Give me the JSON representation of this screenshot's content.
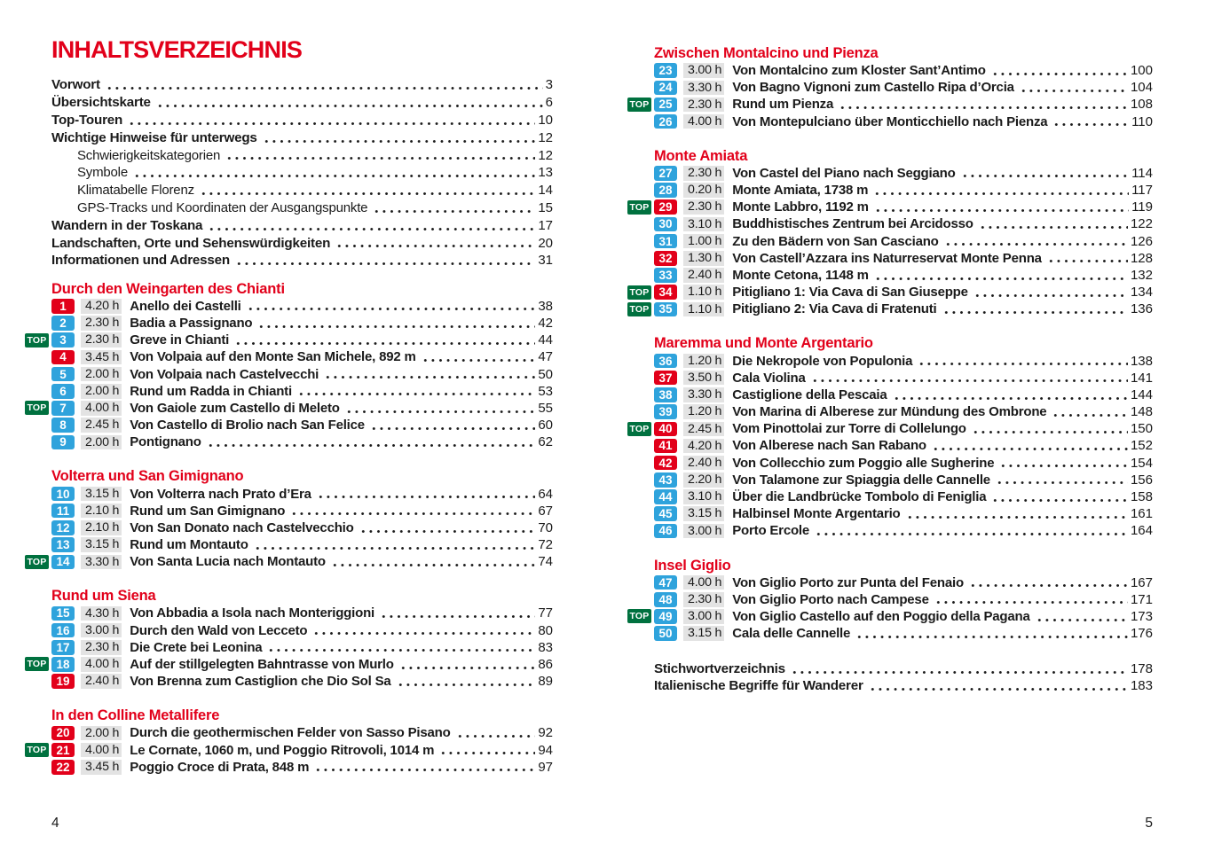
{
  "document": {
    "title": "INHALTSVERZEICHNIS",
    "folio_left": "4",
    "folio_right": "5"
  },
  "labels": {
    "top_badge": "TOP"
  },
  "colors": {
    "accent_red": "#e2001a",
    "badge_blue": "#2fa3dc",
    "top_green": "#00713f",
    "time_bg": "#e3e3e3",
    "text": "#1a1a1a"
  },
  "front_matter": [
    {
      "label": "Vorwort",
      "page": "3",
      "style": "main"
    },
    {
      "label": "Übersichtskarte",
      "page": "6",
      "style": "main"
    },
    {
      "label": "Top-Touren",
      "page": "10",
      "style": "main"
    },
    {
      "label": "Wichtige Hinweise für unterwegs",
      "page": "12",
      "style": "main"
    },
    {
      "label": "Schwierigkeitskategorien",
      "page": "12",
      "style": "sub"
    },
    {
      "label": "Symbole",
      "page": "13",
      "style": "sub"
    },
    {
      "label": "Klimatabelle Florenz",
      "page": "14",
      "style": "sub"
    },
    {
      "label": "GPS-Tracks und Koordinaten der Ausgangspunkte",
      "page": "15",
      "style": "sub"
    },
    {
      "label": "Wandern in der Toskana",
      "page": "17",
      "style": "main"
    },
    {
      "label": "Landschaften, Orte und Sehenswürdigkeiten",
      "page": "20",
      "style": "main"
    },
    {
      "label": "Informationen und Adressen",
      "page": "31",
      "style": "main"
    }
  ],
  "columns": {
    "left_sections": [
      {
        "heading": "Durch den Weingarten des Chianti",
        "tours": [
          {
            "num": "1",
            "color": "red",
            "top": false,
            "time": "4.20 h",
            "title": "Anello dei Castelli",
            "page": "38"
          },
          {
            "num": "2",
            "color": "blue",
            "top": false,
            "time": "2.30 h",
            "title": "Badia a Passignano",
            "page": "42"
          },
          {
            "num": "3",
            "color": "blue",
            "top": true,
            "time": "2.30 h",
            "title": "Greve in Chianti",
            "page": "44"
          },
          {
            "num": "4",
            "color": "red",
            "top": false,
            "time": "3.45 h",
            "title": "Von Volpaia auf den Monte San Michele, 892 m",
            "page": "47"
          },
          {
            "num": "5",
            "color": "blue",
            "top": false,
            "time": "2.00 h",
            "title": "Von Volpaia nach Castelvecchi",
            "page": "50"
          },
          {
            "num": "6",
            "color": "blue",
            "top": false,
            "time": "2.00 h",
            "title": "Rund um Radda in Chianti",
            "page": "53"
          },
          {
            "num": "7",
            "color": "blue",
            "top": true,
            "time": "4.00 h",
            "title": "Von Gaiole zum Castello di Meleto",
            "page": "55"
          },
          {
            "num": "8",
            "color": "blue",
            "top": false,
            "time": "2.45 h",
            "title": "Von Castello di Brolio nach San Felice",
            "page": "60"
          },
          {
            "num": "9",
            "color": "blue",
            "top": false,
            "time": "2.00 h",
            "title": "Pontignano",
            "page": "62"
          }
        ]
      },
      {
        "heading": "Volterra und San Gimignano",
        "tours": [
          {
            "num": "10",
            "color": "blue",
            "top": false,
            "time": "3.15 h",
            "title": "Von Volterra nach Prato d’Era",
            "page": "64"
          },
          {
            "num": "11",
            "color": "blue",
            "top": false,
            "time": "2.10 h",
            "title": "Rund um San Gimignano",
            "page": "67"
          },
          {
            "num": "12",
            "color": "blue",
            "top": false,
            "time": "2.10 h",
            "title": "Von San Donato nach Castelvecchio",
            "page": "70"
          },
          {
            "num": "13",
            "color": "blue",
            "top": false,
            "time": "3.15 h",
            "title": "Rund um Montauto",
            "page": "72"
          },
          {
            "num": "14",
            "color": "blue",
            "top": true,
            "time": "3.30 h",
            "title": "Von Santa Lucia nach Montauto",
            "page": "74"
          }
        ]
      },
      {
        "heading": "Rund um Siena",
        "tours": [
          {
            "num": "15",
            "color": "blue",
            "top": false,
            "time": "4.30 h",
            "title": "Von Abbadia a Isola nach Monteriggioni",
            "page": "77"
          },
          {
            "num": "16",
            "color": "blue",
            "top": false,
            "time": "3.00 h",
            "title": "Durch den Wald von Lecceto",
            "page": "80"
          },
          {
            "num": "17",
            "color": "blue",
            "top": false,
            "time": "2.30 h",
            "title": "Die Crete bei Leonina",
            "page": "83"
          },
          {
            "num": "18",
            "color": "blue",
            "top": true,
            "time": "4.00 h",
            "title": "Auf der stillgelegten Bahntrasse von Murlo",
            "page": "86"
          },
          {
            "num": "19",
            "color": "red",
            "top": false,
            "time": "2.40 h",
            "title": "Von Brenna zum Castiglion che Dio Sol Sa",
            "page": "89"
          }
        ]
      },
      {
        "heading": "In den Colline Metallifere",
        "tours": [
          {
            "num": "20",
            "color": "red",
            "top": false,
            "time": "2.00 h",
            "title": "Durch die geothermischen Felder von Sasso Pisano",
            "page": "92"
          },
          {
            "num": "21",
            "color": "red",
            "top": true,
            "time": "4.00 h",
            "title": "Le Cornate, 1060 m, und Poggio Ritrovoli, 1014 m",
            "page": "94"
          },
          {
            "num": "22",
            "color": "red",
            "top": false,
            "time": "3.45 h",
            "title": "Poggio Croce di Prata, 848 m",
            "page": "97"
          }
        ]
      }
    ],
    "right_sections": [
      {
        "heading": "Zwischen Montalcino und Pienza",
        "tours": [
          {
            "num": "23",
            "color": "blue",
            "top": false,
            "time": "3.00 h",
            "title": "Von Montalcino zum Kloster Sant’Antimo",
            "page": "100"
          },
          {
            "num": "24",
            "color": "blue",
            "top": false,
            "time": "3.30 h",
            "title": "Von Bagno Vignoni zum Castello Ripa d’Orcia",
            "page": "104"
          },
          {
            "num": "25",
            "color": "blue",
            "top": true,
            "time": "2.30 h",
            "title": "Rund um Pienza",
            "page": "108"
          },
          {
            "num": "26",
            "color": "blue",
            "top": false,
            "time": "4.00 h",
            "title": "Von Montepulciano über Monticchiello nach Pienza",
            "page": "110"
          }
        ]
      },
      {
        "heading": "Monte Amiata",
        "tours": [
          {
            "num": "27",
            "color": "blue",
            "top": false,
            "time": "2.30 h",
            "title": "Von Castel del Piano nach Seggiano",
            "page": "114"
          },
          {
            "num": "28",
            "color": "blue",
            "top": false,
            "time": "0.20 h",
            "title": "Monte Amiata, 1738 m",
            "page": "117"
          },
          {
            "num": "29",
            "color": "red",
            "top": true,
            "time": "2.30 h",
            "title": "Monte Labbro, 1192 m",
            "page": "119"
          },
          {
            "num": "30",
            "color": "blue",
            "top": false,
            "time": "3.10 h",
            "title": "Buddhistisches Zentrum bei Arcidosso",
            "page": "122"
          },
          {
            "num": "31",
            "color": "blue",
            "top": false,
            "time": "1.00 h",
            "title": "Zu den Bädern von San Casciano",
            "page": "126"
          },
          {
            "num": "32",
            "color": "red",
            "top": false,
            "time": "1.30 h",
            "title": "Von Castell’Azzara ins Naturreservat Monte Penna",
            "page": "128"
          },
          {
            "num": "33",
            "color": "blue",
            "top": false,
            "time": "2.40 h",
            "title": "Monte Cetona, 1148 m",
            "page": "132"
          },
          {
            "num": "34",
            "color": "red",
            "top": true,
            "time": "1.10 h",
            "title": "Pitigliano 1: Via Cava di San Giuseppe",
            "page": "134"
          },
          {
            "num": "35",
            "color": "blue",
            "top": true,
            "time": "1.10 h",
            "title": "Pitigliano 2: Via Cava di Fratenuti",
            "page": "136"
          }
        ]
      },
      {
        "heading": "Maremma und Monte Argentario",
        "tours": [
          {
            "num": "36",
            "color": "blue",
            "top": false,
            "time": "1.20 h",
            "title": "Die Nekropole von Populonia",
            "page": "138"
          },
          {
            "num": "37",
            "color": "red",
            "top": false,
            "time": "3.50 h",
            "title": "Cala Violina",
            "page": "141"
          },
          {
            "num": "38",
            "color": "blue",
            "top": false,
            "time": "3.30 h",
            "title": "Castiglione della Pescaia",
            "page": "144"
          },
          {
            "num": "39",
            "color": "blue",
            "top": false,
            "time": "1.20 h",
            "title": "Von Marina di Alberese zur Mündung des Ombrone",
            "page": "148"
          },
          {
            "num": "40",
            "color": "red",
            "top": true,
            "time": "2.45 h",
            "title": "Vom Pinottolai zur Torre di Collelungo",
            "page": "150"
          },
          {
            "num": "41",
            "color": "red",
            "top": false,
            "time": "4.20 h",
            "title": "Von Alberese nach San Rabano",
            "page": "152"
          },
          {
            "num": "42",
            "color": "red",
            "top": false,
            "time": "2.40 h",
            "title": "Von Collecchio zum Poggio alle Sugherine",
            "page": "154"
          },
          {
            "num": "43",
            "color": "blue",
            "top": false,
            "time": "2.20 h",
            "title": "Von Talamone zur Spiaggia delle Cannelle",
            "page": "156"
          },
          {
            "num": "44",
            "color": "blue",
            "top": false,
            "time": "3.10 h",
            "title": "Über die Landbrücke Tombolo di Feniglia",
            "page": "158"
          },
          {
            "num": "45",
            "color": "blue",
            "top": false,
            "time": "3.15 h",
            "title": "Halbinsel Monte Argentario",
            "page": "161"
          },
          {
            "num": "46",
            "color": "blue",
            "top": false,
            "time": "3.00 h",
            "title": "Porto Ercole",
            "page": "164"
          }
        ]
      },
      {
        "heading": "Insel Giglio",
        "tours": [
          {
            "num": "47",
            "color": "blue",
            "top": false,
            "time": "4.00 h",
            "title": "Von Giglio Porto zur Punta del Fenaio",
            "page": "167"
          },
          {
            "num": "48",
            "color": "blue",
            "top": false,
            "time": "2.30 h",
            "title": "Von Giglio Porto nach Campese",
            "page": "171"
          },
          {
            "num": "49",
            "color": "blue",
            "top": true,
            "time": "3.00 h",
            "title": "Von Giglio Castello auf den Poggio della Pagana",
            "page": "173"
          },
          {
            "num": "50",
            "color": "blue",
            "top": false,
            "time": "3.15 h",
            "title": "Cala delle Cannelle",
            "page": "176"
          }
        ]
      }
    ]
  },
  "back_matter": [
    {
      "label": "Stichwortverzeichnis",
      "page": "178"
    },
    {
      "label": "Italienische Begriffe für Wanderer",
      "page": "183"
    }
  ]
}
